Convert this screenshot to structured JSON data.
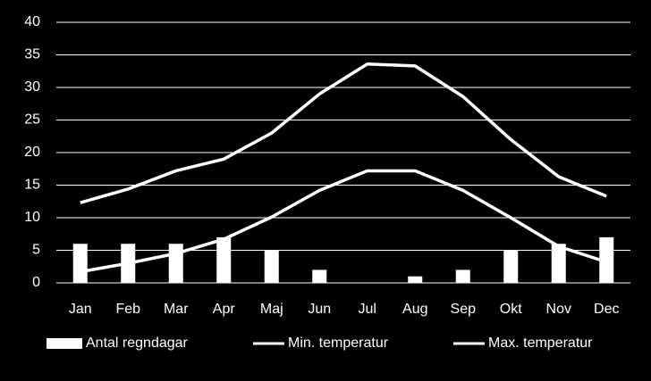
{
  "chart_data": {
    "type": "bar-line",
    "categories": [
      "Jan",
      "Feb",
      "Mar",
      "Apr",
      "Maj",
      "Jun",
      "Jul",
      "Aug",
      "Sep",
      "Okt",
      "Nov",
      "Dec"
    ],
    "series": [
      {
        "name": "Antal regndagar",
        "type": "bar",
        "color": "#ffffff",
        "values": [
          6,
          6,
          6,
          7,
          5,
          2,
          0,
          1,
          2,
          5,
          6,
          7
        ]
      },
      {
        "name": "Min. temperatur",
        "type": "line",
        "color": "#ffffff",
        "values": [
          1.7,
          3,
          4.5,
          6.7,
          10.1,
          14.2,
          17.2,
          17.2,
          14.2,
          10,
          5.6,
          3.2
        ]
      },
      {
        "name": "Max. temperatur",
        "type": "line",
        "color": "#ffffff",
        "values": [
          12.3,
          14.4,
          17.2,
          19,
          23,
          29,
          33.6,
          33.3,
          28.6,
          22,
          16.3,
          13.3
        ]
      }
    ],
    "ylim": [
      0,
      40
    ],
    "yticks": [
      0,
      5,
      10,
      15,
      20,
      25,
      30,
      35,
      40
    ],
    "grid": true,
    "legend": "bottom"
  }
}
